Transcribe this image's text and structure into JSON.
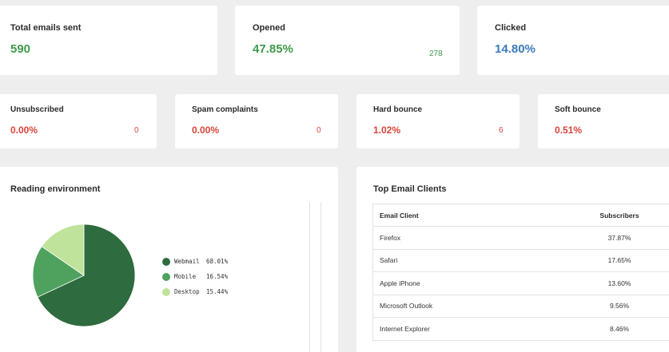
{
  "summary": {
    "total_sent": {
      "label": "Total emails sent",
      "value": "590"
    },
    "opened": {
      "label": "Opened",
      "value": "47.85%",
      "count": "278"
    },
    "clicked": {
      "label": "Clicked",
      "value": "14.80%"
    }
  },
  "metrics": [
    {
      "label": "Unsubscribed",
      "value": "0.00%",
      "count": "0"
    },
    {
      "label": "Spam complaints",
      "value": "0.00%",
      "count": "0"
    },
    {
      "label": "Hard bounce",
      "value": "1.02%",
      "count": "6"
    },
    {
      "label": "Soft bounce",
      "value": "0.51%"
    }
  ],
  "reading_environment": {
    "title": "Reading environment",
    "legend": [
      {
        "name": "Webmail",
        "value": "68.01%",
        "color": "#2e6b3e"
      },
      {
        "name": "Mobile",
        "value": "16.54%",
        "color": "#4ea25e"
      },
      {
        "name": "Desktop",
        "value": "15.44%",
        "color": "#bfe39a"
      }
    ]
  },
  "chart_data": {
    "type": "pie",
    "categories": [
      "Webmail",
      "Mobile",
      "Desktop"
    ],
    "values": [
      68.01,
      16.54,
      15.44
    ],
    "colors": [
      "#2e6b3e",
      "#4ea25e",
      "#bfe39a"
    ],
    "title": "Reading environment",
    "legend_position": "right"
  },
  "top_clients": {
    "title": "Top Email Clients",
    "headers": {
      "client": "Email Client",
      "subscribers": "Subscribers"
    },
    "rows": [
      {
        "client": "Firefox",
        "subscribers": "37.87%"
      },
      {
        "client": "Safari",
        "subscribers": "17.65%"
      },
      {
        "client": "Apple iPhone",
        "subscribers": "13.60%"
      },
      {
        "client": "Microsoft Outlook",
        "subscribers": "9.56%"
      },
      {
        "client": "Internet Explorer",
        "subscribers": "8.46%"
      }
    ]
  }
}
